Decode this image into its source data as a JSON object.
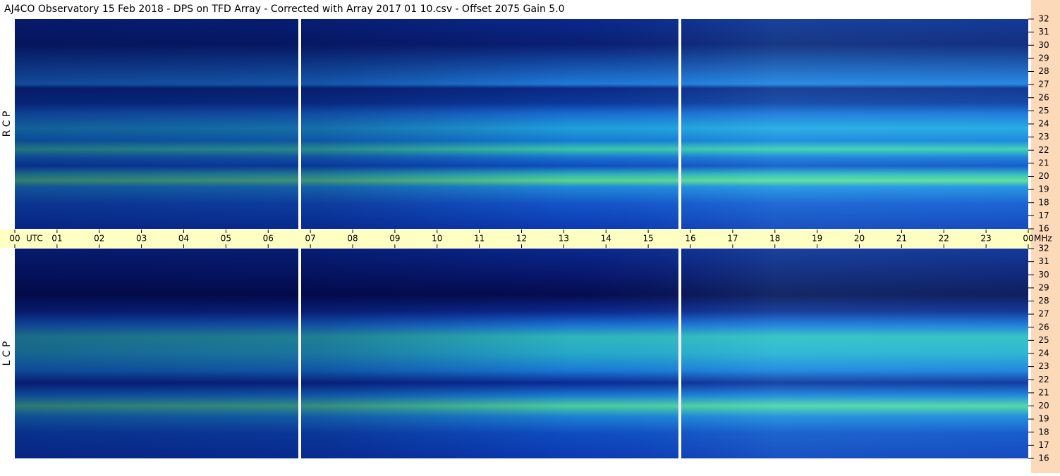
{
  "title": "AJ4CO Observatory  15 Feb 2018  -  DPS on TFD Array  -  Corrected with Array 2017 01 10.csv  -  Offset 2075  Gain 5.0",
  "time_axis": {
    "xlim": [
      0,
      24
    ],
    "left_unit": "UTC",
    "right_unit": "MHz",
    "xticks": [
      {
        "value": 0,
        "label": "00"
      },
      {
        "value": 1,
        "label": "01"
      },
      {
        "value": 2,
        "label": "02"
      },
      {
        "value": 3,
        "label": "03"
      },
      {
        "value": 4,
        "label": "04"
      },
      {
        "value": 5,
        "label": "05"
      },
      {
        "value": 6,
        "label": "06"
      },
      {
        "value": 7,
        "label": "07"
      },
      {
        "value": 8,
        "label": "08"
      },
      {
        "value": 9,
        "label": "09"
      },
      10,
      11,
      12,
      13,
      14,
      15,
      16,
      17,
      18,
      19,
      20,
      21,
      22,
      23,
      {
        "value": 24,
        "label": "00"
      }
    ]
  },
  "chart_data": [
    {
      "type": "heatmap",
      "ylabel": "R C P",
      "ylim": [
        16,
        32
      ],
      "yticks": [
        16,
        17,
        18,
        19,
        20,
        21,
        22,
        23,
        24,
        25,
        26,
        27,
        28,
        29,
        30,
        31,
        32
      ]
    },
    {
      "type": "heatmap",
      "ylabel": "L C P",
      "ylim": [
        16,
        32
      ],
      "yticks": [
        16,
        17,
        18,
        19,
        20,
        21,
        22,
        23,
        24,
        25,
        26,
        27,
        28,
        29,
        30,
        31,
        32
      ]
    }
  ]
}
